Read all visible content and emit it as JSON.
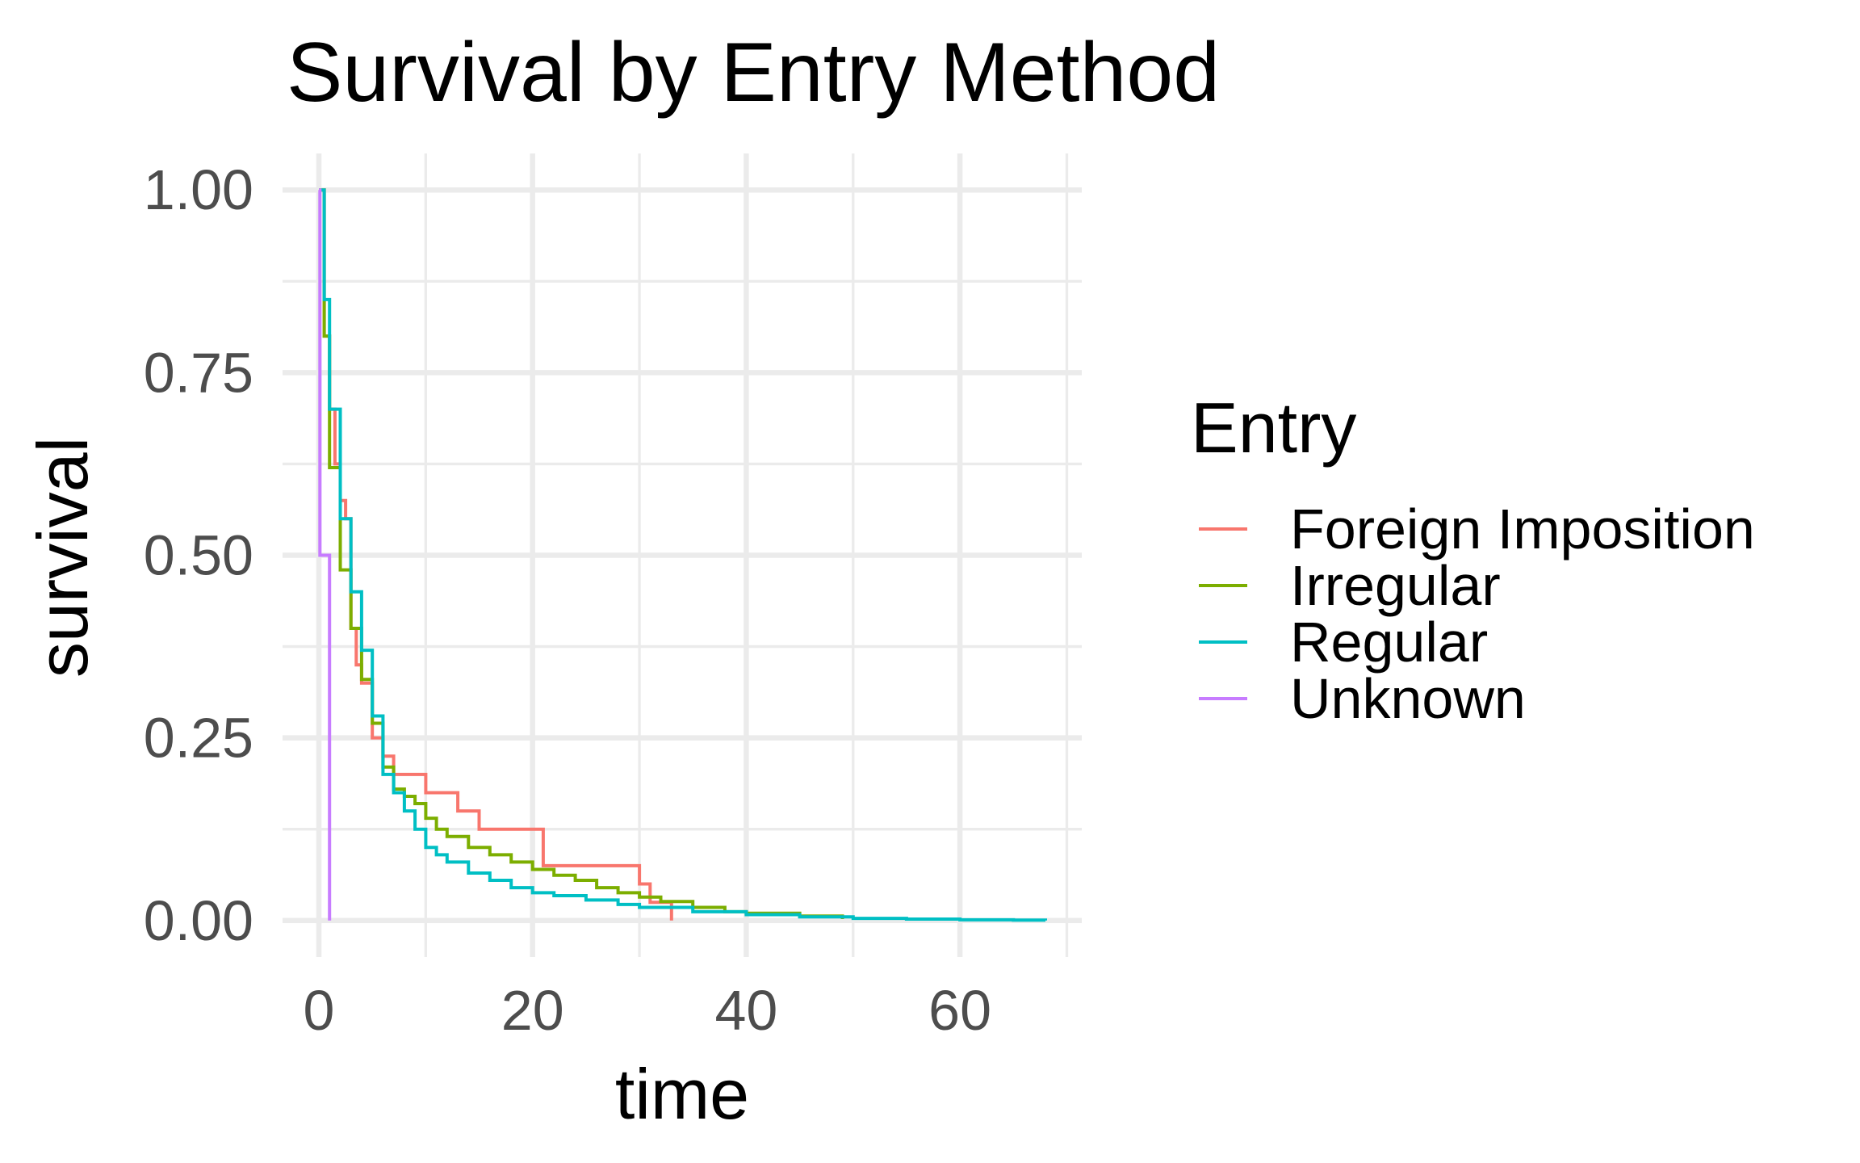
{
  "chart_data": {
    "type": "line",
    "step": true,
    "title": "Survival by Entry Method",
    "xlabel": "time",
    "ylabel": "survival",
    "xlim": [
      -3.4,
      71.4
    ],
    "ylim": [
      -0.05,
      1.05
    ],
    "x_ticks": [
      0,
      20,
      40,
      60
    ],
    "x_tick_labels": [
      "0",
      "20",
      "40",
      "60"
    ],
    "x_minor_ticks": [
      10,
      30,
      50,
      70
    ],
    "y_ticks": [
      0,
      0.25,
      0.5,
      0.75,
      1.0
    ],
    "y_tick_labels": [
      "0.00",
      "0.25",
      "0.50",
      "0.75",
      "1.00"
    ],
    "y_minor_ticks": [
      0.125,
      0.375,
      0.625,
      0.875
    ],
    "grid": true,
    "legend": {
      "title": "Entry",
      "position": "right"
    },
    "series": [
      {
        "name": "Foreign Imposition",
        "color": "#F8766D",
        "x": [
          0,
          0.5,
          1,
          1.5,
          2,
          2.5,
          3,
          3.5,
          4,
          5,
          6,
          7,
          10,
          13,
          15,
          21,
          30,
          31,
          33
        ],
        "values": [
          1.0,
          0.8,
          0.7,
          0.625,
          0.575,
          0.55,
          0.4,
          0.35,
          0.325,
          0.25,
          0.225,
          0.2,
          0.175,
          0.15,
          0.125,
          0.075,
          0.05,
          0.025,
          0.0
        ]
      },
      {
        "name": "Irregular",
        "color": "#7CAE00",
        "x": [
          0,
          0.5,
          1,
          2,
          3,
          4,
          5,
          6,
          7,
          8,
          9,
          10,
          11,
          12,
          14,
          16,
          18,
          20,
          22,
          24,
          26,
          28,
          30,
          32,
          35,
          38,
          40,
          45,
          49
        ],
        "values": [
          1.0,
          0.8,
          0.62,
          0.48,
          0.4,
          0.33,
          0.27,
          0.21,
          0.18,
          0.17,
          0.16,
          0.14,
          0.125,
          0.115,
          0.1,
          0.09,
          0.08,
          0.07,
          0.062,
          0.055,
          0.045,
          0.038,
          0.032,
          0.026,
          0.018,
          0.012,
          0.01,
          0.006,
          0.002
        ]
      },
      {
        "name": "Regular",
        "color": "#00BFC4",
        "x": [
          0,
          0.5,
          1,
          2,
          3,
          4,
          5,
          6,
          7,
          8,
          9,
          10,
          11,
          12,
          14,
          16,
          18,
          20,
          22,
          25,
          28,
          30,
          35,
          40,
          45,
          50,
          55,
          60,
          65,
          68
        ],
        "values": [
          1.0,
          0.85,
          0.7,
          0.55,
          0.45,
          0.37,
          0.28,
          0.2,
          0.175,
          0.15,
          0.125,
          0.1,
          0.09,
          0.08,
          0.065,
          0.055,
          0.045,
          0.038,
          0.034,
          0.028,
          0.022,
          0.018,
          0.012,
          0.008,
          0.005,
          0.003,
          0.002,
          0.001,
          0.0005,
          0.0
        ]
      },
      {
        "name": "Unknown",
        "color": "#C77CFF",
        "x": [
          0,
          0.1,
          0.5,
          1,
          1.0
        ],
        "values": [
          1.0,
          0.5,
          0.5,
          0.5,
          0.0
        ]
      }
    ]
  }
}
